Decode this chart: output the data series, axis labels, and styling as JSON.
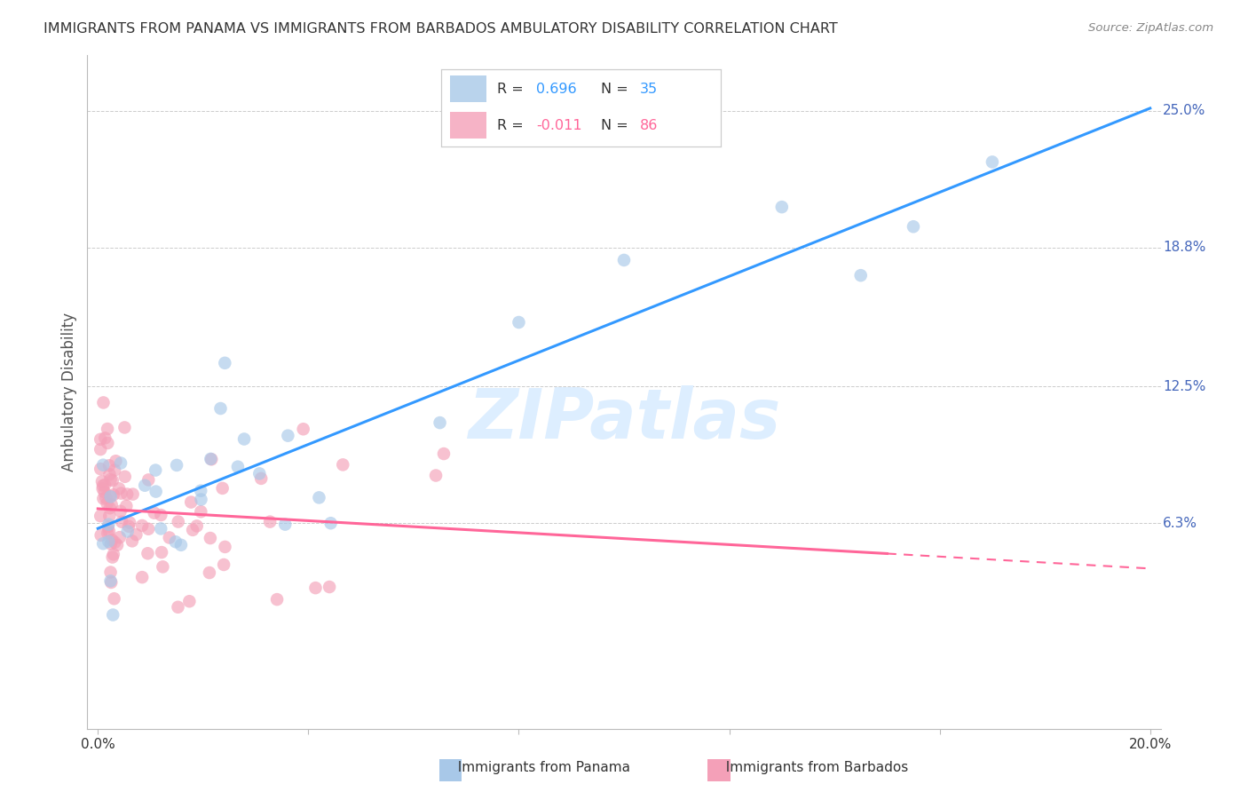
{
  "title": "IMMIGRANTS FROM PANAMA VS IMMIGRANTS FROM BARBADOS AMBULATORY DISABILITY CORRELATION CHART",
  "source": "Source: ZipAtlas.com",
  "ylabel": "Ambulatory Disability",
  "xlim": [
    -0.002,
    0.202
  ],
  "ylim": [
    -0.03,
    0.275
  ],
  "xtick_positions": [
    0.0,
    0.04,
    0.08,
    0.12,
    0.16,
    0.2
  ],
  "xticklabels": [
    "0.0%",
    "",
    "",
    "",
    "",
    "20.0%"
  ],
  "ytick_positions": [
    0.063,
    0.125,
    0.188,
    0.25
  ],
  "ytick_labels": [
    "6.3%",
    "12.5%",
    "18.8%",
    "25.0%"
  ],
  "panama_color": "#a8c8e8",
  "barbados_color": "#f4a0b8",
  "panama_line_color": "#3399ff",
  "barbados_line_color": "#ff6699",
  "grid_color": "#cccccc",
  "background_color": "#ffffff",
  "legend_color": "#3366cc",
  "legend_neg_color": "#3366cc",
  "watermark_color": "#ddeeff",
  "panama_seed": 42,
  "barbados_seed": 7
}
